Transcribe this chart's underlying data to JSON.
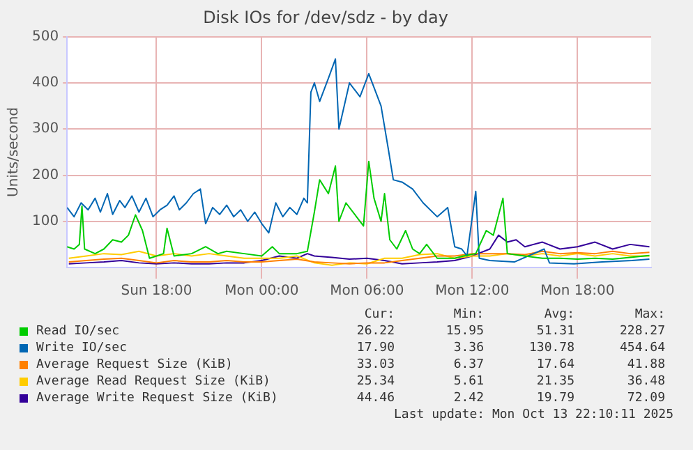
{
  "chart_data": {
    "type": "line",
    "title": "Disk IOs for /dev/sdz - by day",
    "ylabel": "Units/second",
    "xlim": [
      "2025-10-12T12:54",
      "2025-10-13T22:12"
    ],
    "xticks": [
      {
        "value": "2025-10-12T18:00",
        "label": "Sun 18:00"
      },
      {
        "value": "2025-10-13T00:00",
        "label": "Mon 00:00"
      },
      {
        "value": "2025-10-13T06:00",
        "label": "Mon 06:00"
      },
      {
        "value": "2025-10-13T12:00",
        "label": "Mon 12:00"
      },
      {
        "value": "2025-10-13T18:00",
        "label": "Mon 18:00"
      }
    ],
    "ylim": [
      0,
      500
    ],
    "yticks": [
      100,
      200,
      300,
      400,
      500
    ],
    "grid": true,
    "legend": "bottom",
    "series": [
      {
        "name": "Read IO/sec",
        "color": "#00cc00",
        "x": [
          "2025-10-12T12:54",
          "2025-10-12T13:18",
          "2025-10-12T13:36",
          "2025-10-12T13:45",
          "2025-10-12T13:54",
          "2025-10-12T14:30",
          "2025-10-12T15:00",
          "2025-10-12T15:30",
          "2025-10-12T16:00",
          "2025-10-12T16:24",
          "2025-10-12T16:48",
          "2025-10-12T17:12",
          "2025-10-12T17:36",
          "2025-10-12T18:00",
          "2025-10-12T18:24",
          "2025-10-12T18:36",
          "2025-10-12T19:00",
          "2025-10-12T20:00",
          "2025-10-12T20:48",
          "2025-10-12T21:30",
          "2025-10-12T22:00",
          "2025-10-12T23:00",
          "2025-10-13T00:00",
          "2025-10-13T00:36",
          "2025-10-13T01:00",
          "2025-10-13T02:00",
          "2025-10-13T02:36",
          "2025-10-13T03:00",
          "2025-10-13T03:18",
          "2025-10-13T03:48",
          "2025-10-13T04:12",
          "2025-10-13T04:24",
          "2025-10-13T04:48",
          "2025-10-13T05:24",
          "2025-10-13T05:48",
          "2025-10-13T06:06",
          "2025-10-13T06:24",
          "2025-10-13T06:48",
          "2025-10-13T07:00",
          "2025-10-13T07:18",
          "2025-10-13T07:42",
          "2025-10-13T08:12",
          "2025-10-13T08:36",
          "2025-10-13T09:00",
          "2025-10-13T09:24",
          "2025-10-13T10:00",
          "2025-10-13T11:00",
          "2025-10-13T11:30",
          "2025-10-13T12:12",
          "2025-10-13T12:48",
          "2025-10-13T13:12",
          "2025-10-13T13:45",
          "2025-10-13T14:00",
          "2025-10-13T15:00",
          "2025-10-13T16:00",
          "2025-10-13T17:00",
          "2025-10-13T18:00",
          "2025-10-13T19:00",
          "2025-10-13T20:00",
          "2025-10-13T21:00",
          "2025-10-13T22:06"
        ],
        "values": [
          45,
          40,
          50,
          133,
          40,
          30,
          40,
          60,
          55,
          70,
          114,
          80,
          20,
          25,
          30,
          85,
          25,
          30,
          45,
          30,
          35,
          30,
          25,
          45,
          30,
          30,
          35,
          120,
          190,
          160,
          220,
          100,
          140,
          110,
          90,
          230,
          150,
          100,
          160,
          60,
          40,
          80,
          40,
          30,
          50,
          20,
          20,
          25,
          30,
          80,
          70,
          150,
          30,
          25,
          20,
          20,
          18,
          20,
          18,
          22,
          26
        ]
      },
      {
        "name": "Write IO/sec",
        "color": "#0066b3",
        "x": [
          "2025-10-12T12:54",
          "2025-10-12T13:18",
          "2025-10-12T13:42",
          "2025-10-12T14:06",
          "2025-10-12T14:30",
          "2025-10-12T14:48",
          "2025-10-12T15:12",
          "2025-10-12T15:30",
          "2025-10-12T15:54",
          "2025-10-12T16:12",
          "2025-10-12T16:36",
          "2025-10-12T17:00",
          "2025-10-12T17:24",
          "2025-10-12T17:48",
          "2025-10-12T18:12",
          "2025-10-12T18:36",
          "2025-10-12T19:00",
          "2025-10-12T19:18",
          "2025-10-12T19:42",
          "2025-10-12T20:06",
          "2025-10-12T20:30",
          "2025-10-12T20:48",
          "2025-10-12T21:12",
          "2025-10-12T21:36",
          "2025-10-12T22:00",
          "2025-10-12T22:24",
          "2025-10-12T22:48",
          "2025-10-12T23:12",
          "2025-10-12T23:36",
          "2025-10-13T00:00",
          "2025-10-13T00:24",
          "2025-10-13T00:48",
          "2025-10-13T01:12",
          "2025-10-13T01:36",
          "2025-10-13T02:00",
          "2025-10-13T02:24",
          "2025-10-13T02:36",
          "2025-10-13T02:48",
          "2025-10-13T03:00",
          "2025-10-13T03:18",
          "2025-10-13T03:48",
          "2025-10-13T04:12",
          "2025-10-13T04:24",
          "2025-10-13T05:00",
          "2025-10-13T05:36",
          "2025-10-13T06:06",
          "2025-10-13T06:24",
          "2025-10-13T06:48",
          "2025-10-13T07:12",
          "2025-10-13T07:30",
          "2025-10-13T08:00",
          "2025-10-13T08:36",
          "2025-10-13T09:12",
          "2025-10-13T10:00",
          "2025-10-13T10:36",
          "2025-10-13T11:00",
          "2025-10-13T11:24",
          "2025-10-13T11:42",
          "2025-10-13T12:12",
          "2025-10-13T12:24",
          "2025-10-13T13:00",
          "2025-10-13T14:24",
          "2025-10-13T16:06",
          "2025-10-13T16:24",
          "2025-10-13T17:48",
          "2025-10-13T19:24",
          "2025-10-13T21:06",
          "2025-10-13T22:06"
        ],
        "values": [
          130,
          110,
          140,
          125,
          150,
          120,
          160,
          115,
          145,
          130,
          155,
          120,
          150,
          110,
          125,
          135,
          155,
          125,
          140,
          160,
          170,
          95,
          130,
          115,
          135,
          110,
          125,
          100,
          120,
          95,
          75,
          140,
          110,
          130,
          115,
          150,
          140,
          380,
          400,
          360,
          410,
          452,
          300,
          400,
          370,
          420,
          390,
          350,
          260,
          190,
          185,
          170,
          140,
          110,
          130,
          45,
          40,
          25,
          165,
          20,
          15,
          12,
          40,
          10,
          8,
          12,
          15,
          18
        ]
      },
      {
        "name": "Average Request Size (KiB)",
        "color": "#ff8000",
        "x": [
          "2025-10-12T13:00",
          "2025-10-12T14:00",
          "2025-10-12T15:00",
          "2025-10-12T16:00",
          "2025-10-12T17:00",
          "2025-10-12T18:00",
          "2025-10-12T19:00",
          "2025-10-12T20:00",
          "2025-10-12T21:00",
          "2025-10-12T22:00",
          "2025-10-12T23:00",
          "2025-10-13T00:00",
          "2025-10-13T01:00",
          "2025-10-13T02:00",
          "2025-10-13T03:00",
          "2025-10-13T04:00",
          "2025-10-13T05:00",
          "2025-10-13T06:00",
          "2025-10-13T07:00",
          "2025-10-13T08:00",
          "2025-10-13T09:00",
          "2025-10-13T10:00",
          "2025-10-13T11:00",
          "2025-10-13T12:00",
          "2025-10-13T13:00",
          "2025-10-13T14:00",
          "2025-10-13T15:00",
          "2025-10-13T16:00",
          "2025-10-13T17:00",
          "2025-10-13T18:00",
          "2025-10-13T19:00",
          "2025-10-13T20:00",
          "2025-10-13T21:00",
          "2025-10-13T22:06"
        ],
        "values": [
          12,
          15,
          18,
          20,
          15,
          10,
          15,
          12,
          12,
          15,
          12,
          12,
          15,
          18,
          12,
          10,
          8,
          10,
          10,
          15,
          20,
          25,
          25,
          30,
          30,
          30,
          28,
          35,
          30,
          32,
          30,
          35,
          30,
          33
        ]
      },
      {
        "name": "Average Read Request Size (KiB)",
        "color": "#ffcc00",
        "x": [
          "2025-10-12T13:00",
          "2025-10-12T14:00",
          "2025-10-12T15:00",
          "2025-10-12T16:00",
          "2025-10-12T17:00",
          "2025-10-12T18:00",
          "2025-10-12T19:00",
          "2025-10-12T20:00",
          "2025-10-12T21:00",
          "2025-10-12T22:00",
          "2025-10-12T23:00",
          "2025-10-13T00:00",
          "2025-10-13T01:00",
          "2025-10-13T02:00",
          "2025-10-13T03:00",
          "2025-10-13T04:00",
          "2025-10-13T05:00",
          "2025-10-13T06:00",
          "2025-10-13T07:00",
          "2025-10-13T08:00",
          "2025-10-13T09:00",
          "2025-10-13T10:00",
          "2025-10-13T11:00",
          "2025-10-13T12:00",
          "2025-10-13T13:00",
          "2025-10-13T14:00",
          "2025-10-13T15:00",
          "2025-10-13T16:00",
          "2025-10-13T17:00",
          "2025-10-13T18:00",
          "2025-10-13T19:00",
          "2025-10-13T20:00",
          "2025-10-13T21:00",
          "2025-10-13T22:06"
        ],
        "values": [
          20,
          25,
          30,
          28,
          35,
          25,
          30,
          25,
          30,
          25,
          20,
          20,
          20,
          25,
          10,
          5,
          10,
          8,
          20,
          20,
          28,
          30,
          20,
          25,
          25,
          30,
          25,
          30,
          25,
          30,
          25,
          30,
          25,
          25
        ]
      },
      {
        "name": "Average Write Request Size (KiB)",
        "color": "#330099",
        "x": [
          "2025-10-12T13:00",
          "2025-10-12T14:00",
          "2025-10-12T15:00",
          "2025-10-12T16:00",
          "2025-10-12T17:00",
          "2025-10-12T18:00",
          "2025-10-12T19:00",
          "2025-10-12T20:00",
          "2025-10-12T21:00",
          "2025-10-12T22:00",
          "2025-10-12T23:00",
          "2025-10-13T00:00",
          "2025-10-13T01:00",
          "2025-10-13T02:00",
          "2025-10-13T02:36",
          "2025-10-13T03:00",
          "2025-10-13T04:00",
          "2025-10-13T05:00",
          "2025-10-13T06:00",
          "2025-10-13T07:00",
          "2025-10-13T08:00",
          "2025-10-13T09:00",
          "2025-10-13T10:00",
          "2025-10-13T11:00",
          "2025-10-13T12:00",
          "2025-10-13T13:00",
          "2025-10-13T13:30",
          "2025-10-13T14:00",
          "2025-10-13T14:30",
          "2025-10-13T15:00",
          "2025-10-13T16:00",
          "2025-10-13T17:00",
          "2025-10-13T18:00",
          "2025-10-13T19:00",
          "2025-10-13T20:00",
          "2025-10-13T21:00",
          "2025-10-13T22:06"
        ],
        "values": [
          8,
          10,
          12,
          15,
          10,
          8,
          10,
          8,
          8,
          10,
          10,
          15,
          25,
          20,
          30,
          25,
          22,
          18,
          20,
          15,
          8,
          10,
          12,
          15,
          25,
          40,
          70,
          55,
          60,
          45,
          55,
          40,
          45,
          55,
          40,
          50,
          45
        ]
      }
    ],
    "annotations": [
      "Cur:",
      "Min:",
      "Avg:",
      "Max:",
      "26.22",
      "15.95",
      "51.31",
      "228.27",
      "17.90",
      "3.36",
      "130.78",
      "454.64",
      "33.03",
      "6.37",
      "17.64",
      "41.88",
      "25.34",
      "5.61",
      "21.35",
      "36.48",
      "44.46",
      "2.42",
      "19.79",
      "72.09",
      "Last update: Mon Oct 13 22:10:11 2025"
    ]
  }
}
